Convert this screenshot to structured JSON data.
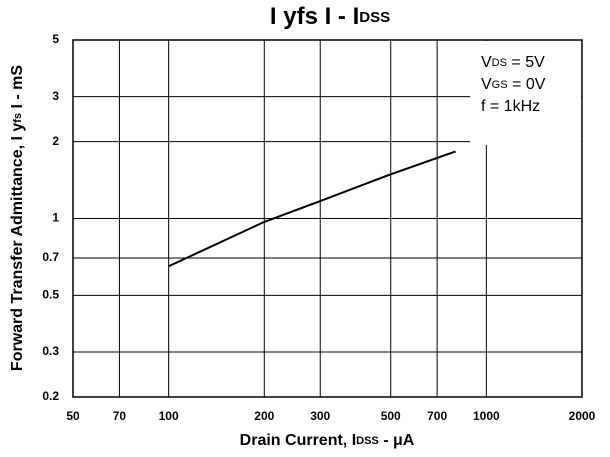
{
  "chart_data": {
    "type": "line",
    "title": [
      "I yfs I  - I",
      "DSS"
    ],
    "xlabel": [
      "Drain Current, I",
      "DSS",
      " - μA"
    ],
    "ylabel": [
      "Forward Transfer Admittance, I y",
      "fs",
      " I - mS"
    ],
    "annotations": [
      [
        "V",
        "DS",
        " = 5V"
      ],
      [
        "V",
        "GS",
        " = 0V"
      ],
      [
        "f = 1kHz"
      ]
    ],
    "x": [
      100,
      200,
      300,
      500,
      800
    ],
    "series": [
      {
        "color": "#000000",
        "values": [
          0.65,
          0.97,
          1.17,
          1.49,
          1.83
        ]
      }
    ],
    "xscale": "log",
    "yscale": "log",
    "xlim": [
      50,
      2000
    ],
    "xticks": [
      50,
      70,
      100,
      200,
      300,
      500,
      700,
      1000,
      2000
    ],
    "ylim": [
      0.2,
      5
    ],
    "yticks": [
      0.2,
      0.3,
      0.5,
      0.7,
      1,
      2,
      3,
      5
    ],
    "grid": true
  }
}
